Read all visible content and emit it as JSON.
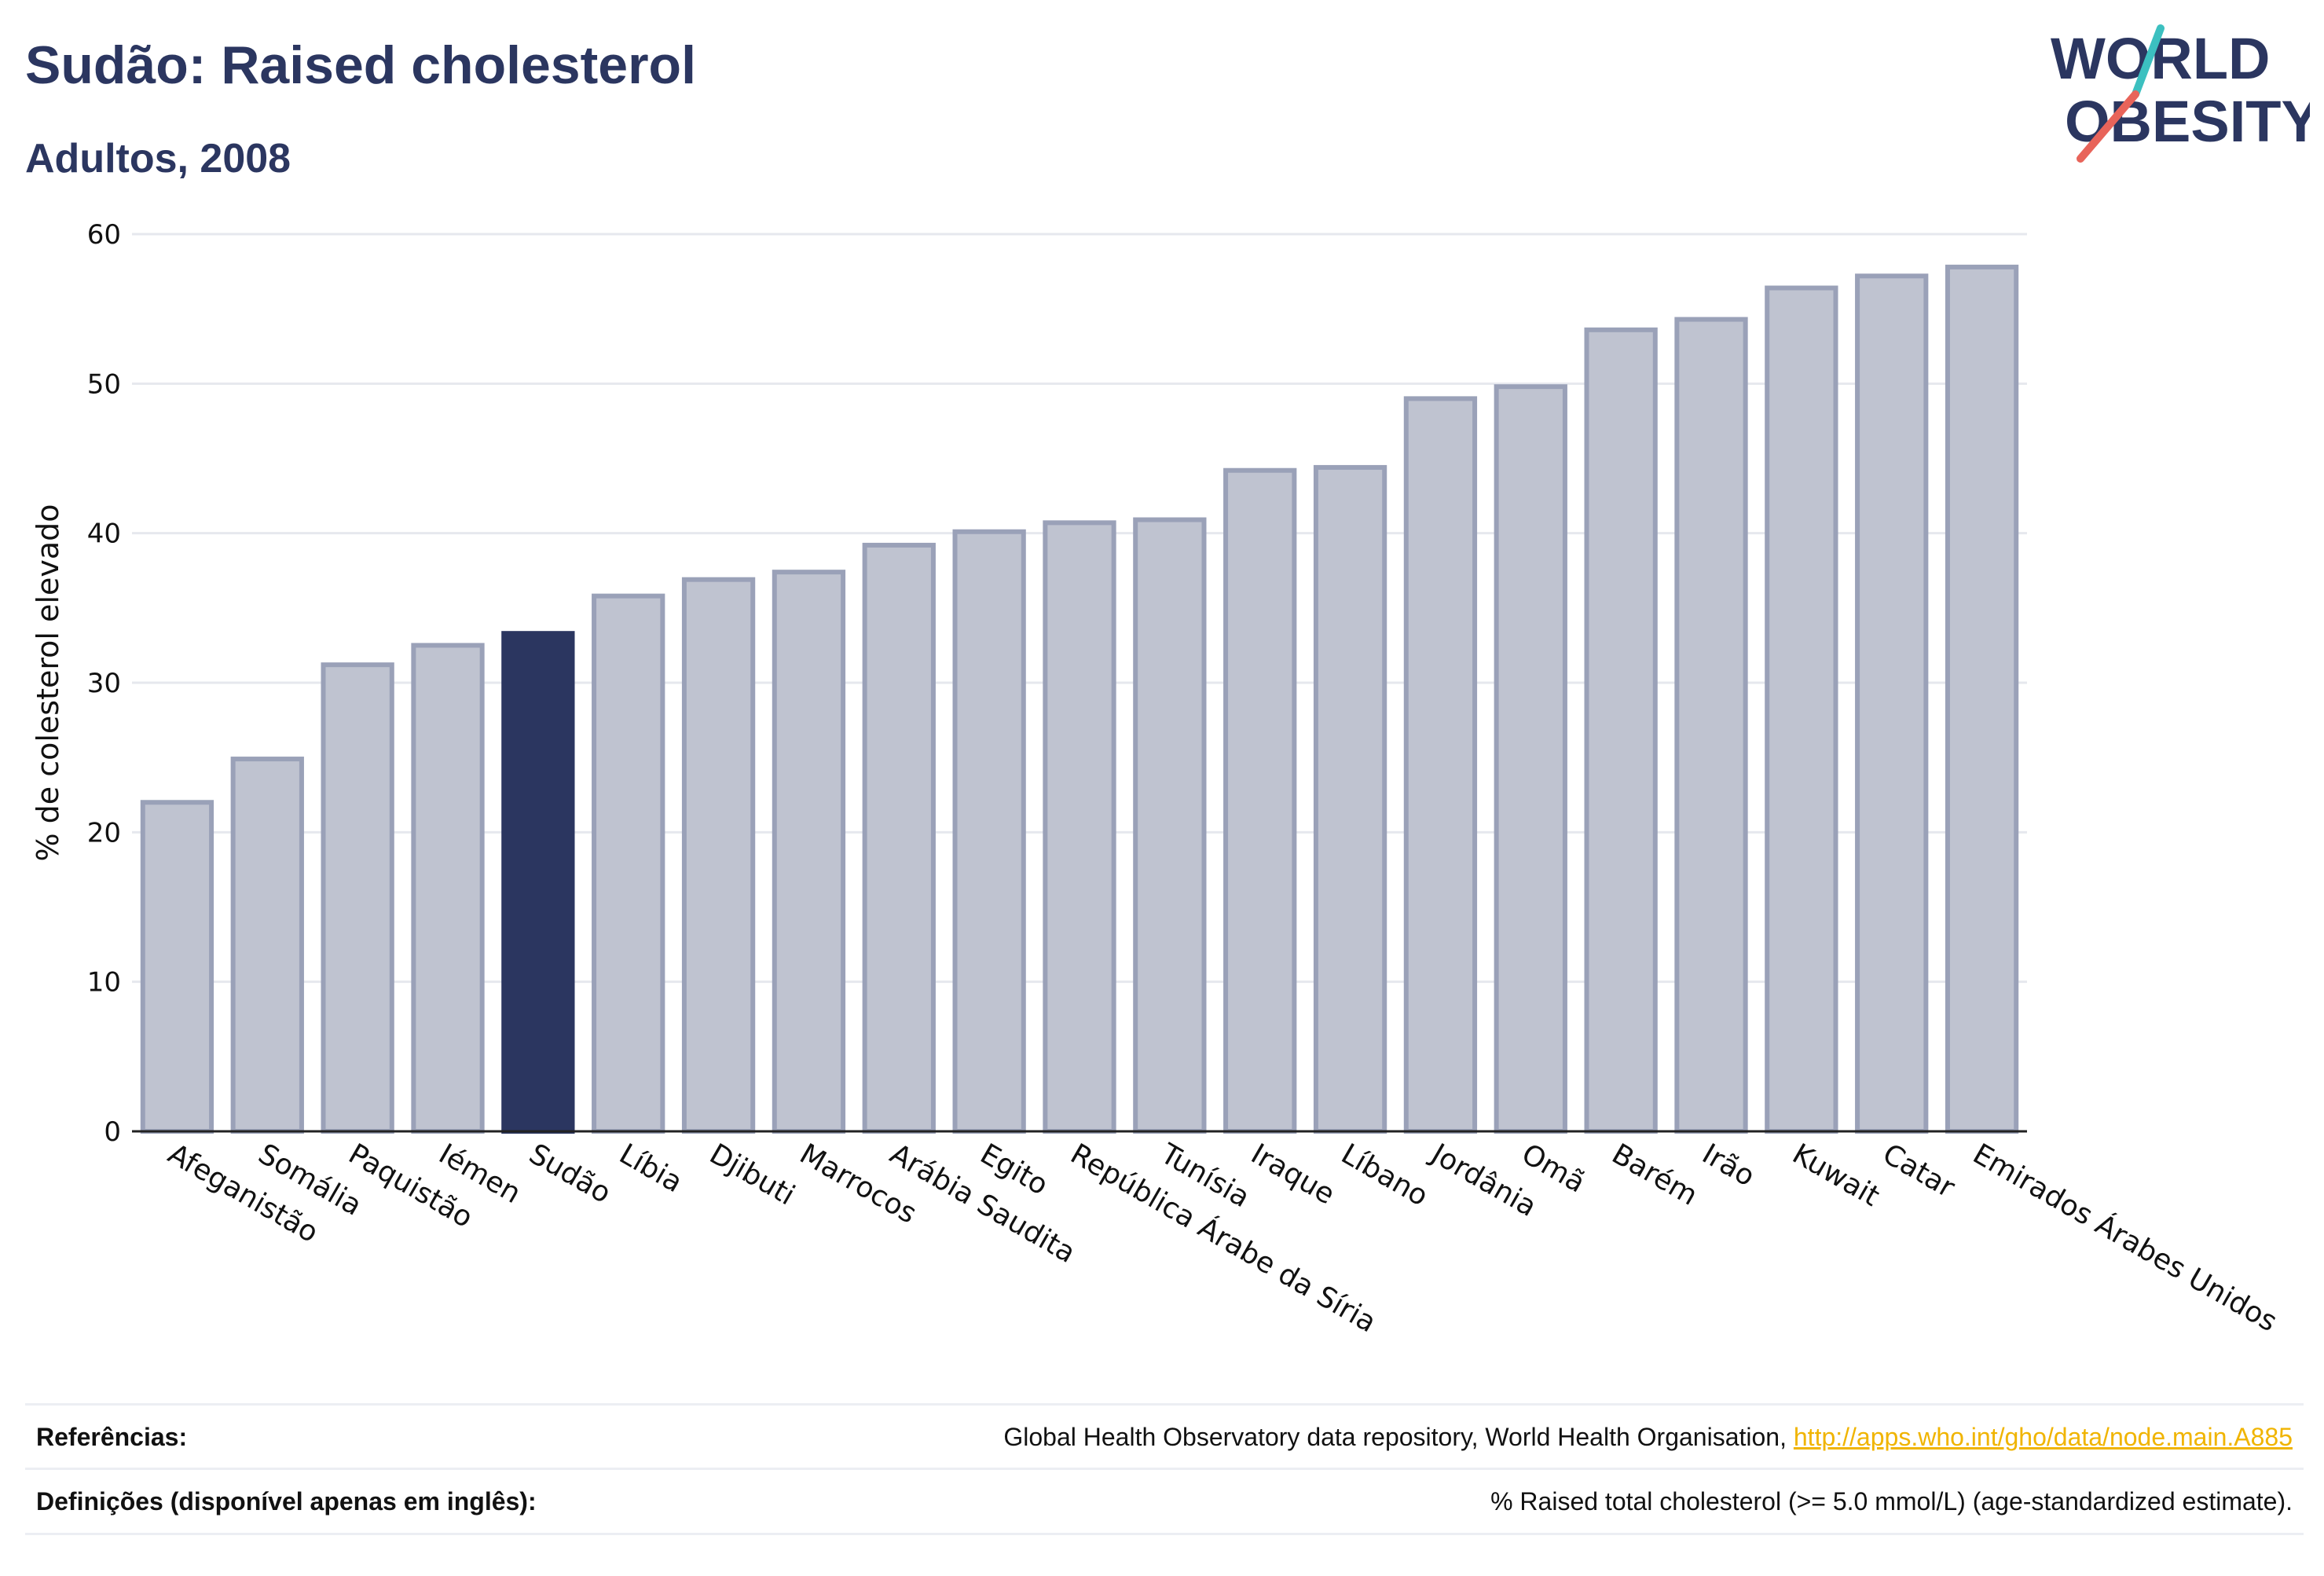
{
  "header": {
    "title": "Sudão: Raised cholesterol",
    "subtitle": "Adultos, 2008"
  },
  "logo": {
    "line1": "WORLD",
    "line2": "OBESITY",
    "accent_teal": "#3cc0c0",
    "accent_red": "#e8645a"
  },
  "colors": {
    "highlight": "#2b3660",
    "bar_fill": "#bfc3d0",
    "bar_stroke": "#9aa1b8",
    "grid": "#e6e8ee"
  },
  "chart_data": {
    "type": "bar",
    "categories": [
      "Afeganistão",
      "Somália",
      "Paquistão",
      "Iémen",
      "Sudão",
      "Líbia",
      "Djibuti",
      "Marrocos",
      "Arábia Saudita",
      "Egito",
      "República Árabe da Síria",
      "Tunísia",
      "Iraque",
      "Líbano",
      "Jordânia",
      "Omã",
      "Barém",
      "Irão",
      "Kuwait",
      "Catar",
      "Emirados Árabes Unidos"
    ],
    "values": [
      22.0,
      24.9,
      31.2,
      32.5,
      33.3,
      35.8,
      36.9,
      37.4,
      39.2,
      40.1,
      40.7,
      40.9,
      44.2,
      44.4,
      49.0,
      49.8,
      53.6,
      54.3,
      56.4,
      57.2,
      57.8
    ],
    "highlight": "Sudão",
    "xlabel": "",
    "ylabel": "% de colesterol elevado",
    "ylim": [
      0,
      60
    ],
    "yticks": [
      0,
      10,
      20,
      30,
      40,
      50,
      60
    ],
    "grid": true
  },
  "footer": {
    "references_label": "Referências:",
    "references_text": "Global Health Observatory data repository, World Health Organisation, ",
    "references_link": "http://apps.who.int/gho/data/node.main.A885",
    "definitions_label": "Definições (disponível apenas em inglês):",
    "definitions_text": "% Raised total cholesterol (>= 5.0 mmol/L) (age-standardized estimate)."
  }
}
